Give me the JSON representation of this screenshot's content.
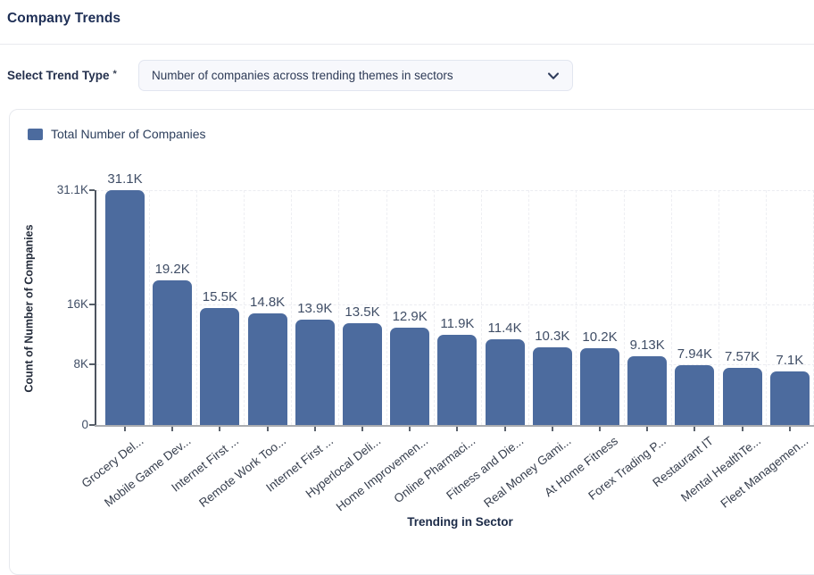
{
  "header": {
    "title": "Company Trends"
  },
  "form": {
    "label": "Select Trend Type",
    "required_marker": "*",
    "select": {
      "value": "Number of companies across trending themes in sectors",
      "chevron_icon": "chevron-down"
    }
  },
  "chart_data": {
    "type": "bar",
    "legend": [
      {
        "label": "Total Number of Companies",
        "color": "#4c6b9e"
      }
    ],
    "legend_position": "top-left",
    "categories": [
      "Grocery Del...",
      "Mobile Game Dev...",
      "Internet First ...",
      "Remote Work Too...",
      "Internet First ...",
      "Hyperlocal Deli...",
      "Home Improvemen...",
      "Online Pharmaci...",
      "Fitness and Die...",
      "Real Money Gami...",
      "At Home Fitness",
      "Forex Trading P...",
      "Restaurant IT",
      "Mental HealthTe...",
      "Fleet Managemen..."
    ],
    "values": [
      31100,
      19200,
      15500,
      14800,
      13900,
      13500,
      12900,
      11900,
      11400,
      10300,
      10200,
      9130,
      7940,
      7570,
      7100
    ],
    "value_labels": [
      "31.1K",
      "19.2K",
      "15.5K",
      "14.8K",
      "13.9K",
      "13.5K",
      "12.9K",
      "11.9K",
      "11.4K",
      "10.3K",
      "10.2K",
      "9.13K",
      "7.94K",
      "7.57K",
      "7.1K"
    ],
    "xlabel": "Trending in Sector",
    "ylabel": "Count of Number of Companies",
    "ylim": [
      0,
      31100
    ],
    "y_ticks": [
      {
        "label": "0",
        "value": 0
      },
      {
        "label": "8K",
        "value": 8000
      },
      {
        "label": "16K",
        "value": 16000
      },
      {
        "label": "31.1K",
        "value": 31100
      }
    ],
    "bar_color": "#4c6b9e",
    "grid": "dashed"
  }
}
